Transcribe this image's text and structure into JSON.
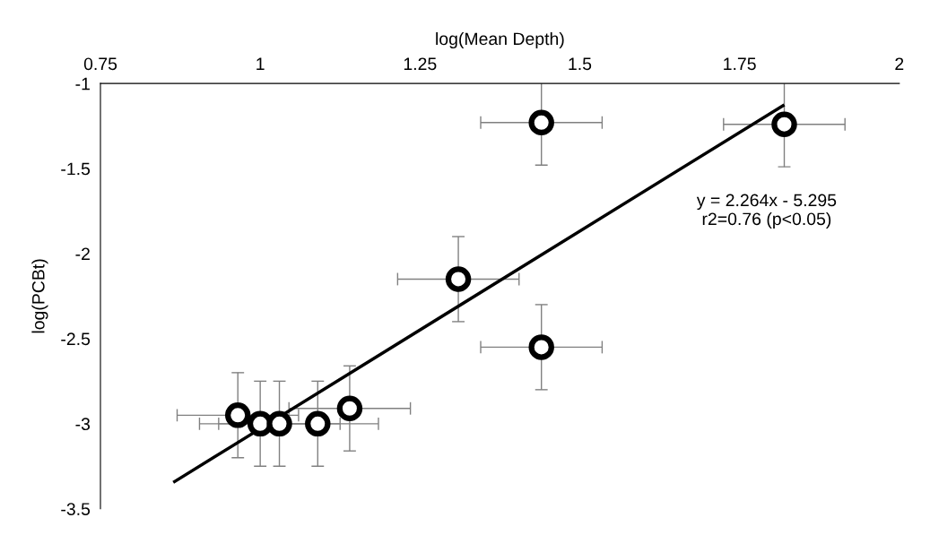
{
  "chart_data": {
    "type": "scatter",
    "xlabel": "log(Mean Depth)",
    "ylabel": "log(PCBt)",
    "xlim": [
      0.75,
      2
    ],
    "xticks": [
      0.75,
      1,
      1.25,
      1.5,
      1.75,
      2
    ],
    "ylim": [
      -3.5,
      -1
    ],
    "yticks": [
      -3.5,
      -3,
      -2.5,
      -2,
      -1.5,
      -1
    ],
    "grid": false,
    "series": [
      {
        "marker": "circle",
        "color": "#000000",
        "x": [
          0.965,
          1.0,
          1.03,
          1.09,
          1.14,
          1.31,
          1.44,
          1.44,
          1.82
        ],
        "values": [
          -2.95,
          -3.0,
          -3.0,
          -3.0,
          -2.91,
          -2.15,
          -1.23,
          -2.55,
          -1.24
        ],
        "errors": [
          0.25,
          0.25,
          0.25,
          0.25,
          0.25,
          0.25,
          0.25,
          0.25,
          0.25
        ],
        "xerrors": [
          0.095,
          0.095,
          0.095,
          0.095,
          0.095,
          0.095,
          0.095,
          0.095,
          0.095
        ]
      },
      {
        "type": "line",
        "color": "#000000",
        "line_style": "solid",
        "x": [
          0.866,
          1.818
        ],
        "values": [
          -3.34,
          -1.13
        ]
      }
    ],
    "annotations": [
      "y = 2.264x - 5.295\nr2=0.76 (p<0.05)"
    ]
  }
}
